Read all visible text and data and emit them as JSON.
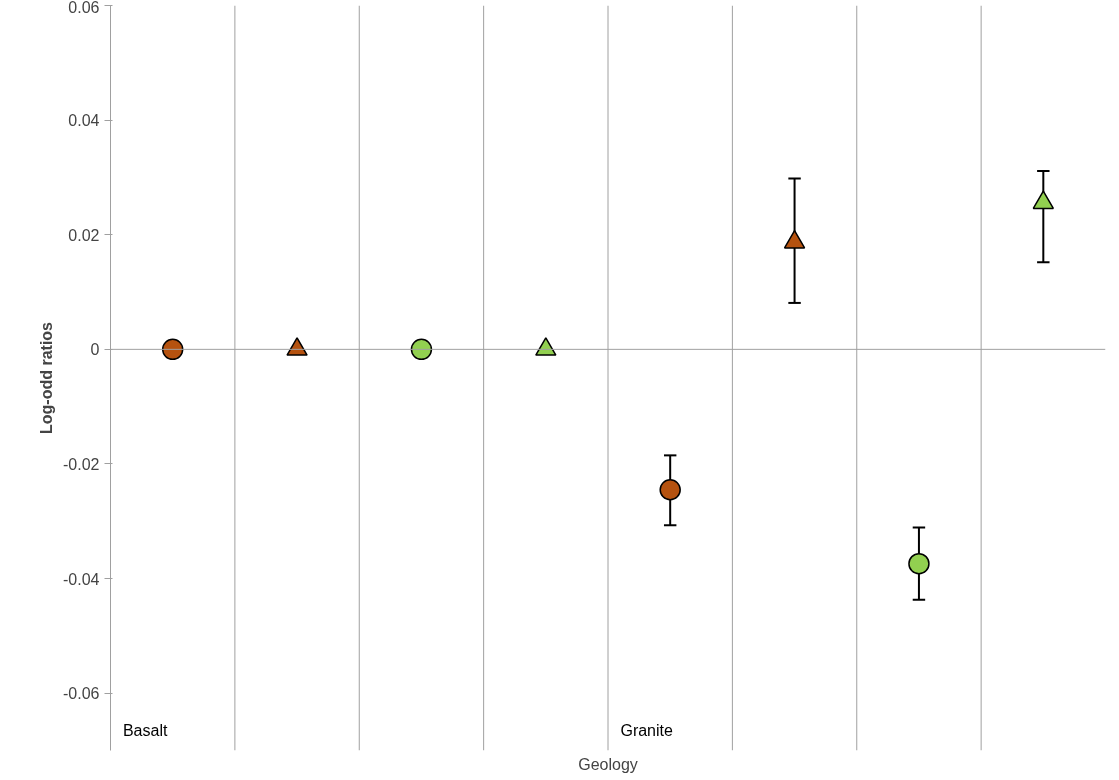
{
  "chart_data": {
    "type": "scatter",
    "ylabel": "Log-odd ratios",
    "xlabel": "Geology",
    "categories": [
      "Basalt",
      null,
      null,
      null,
      "Granite",
      null,
      null,
      null
    ],
    "ylim": [
      -0.07,
      0.06
    ],
    "yticks": [
      -0.06,
      -0.04,
      -0.02,
      0,
      0.02,
      0.04,
      0.06
    ],
    "grid": "x",
    "ref_lines": [
      {
        "axis": "y",
        "value": 0,
        "color": "#a0a0a0"
      }
    ],
    "series": [
      {
        "color": "#b5520f",
        "marker": "circle",
        "values": [
          0,
          null,
          null,
          null,
          -0.0245,
          null,
          null,
          null
        ],
        "errors": [
          null,
          null,
          null,
          null,
          [
            -0.0307,
            -0.0185
          ],
          null,
          null,
          null
        ]
      },
      {
        "color": "#b5520f",
        "marker": "triangle",
        "values": [
          null,
          0,
          null,
          null,
          null,
          0.0187,
          null,
          null
        ],
        "errors": [
          null,
          null,
          null,
          null,
          null,
          [
            0.0081,
            0.0298
          ],
          null,
          null
        ]
      },
      {
        "color": "#92d050",
        "marker": "circle",
        "values": [
          null,
          null,
          0,
          null,
          null,
          null,
          -0.0374,
          null
        ],
        "errors": [
          null,
          null,
          null,
          null,
          null,
          null,
          [
            -0.0437,
            -0.0311
          ],
          null
        ]
      },
      {
        "color": "#92d050",
        "marker": "triangle",
        "values": [
          null,
          null,
          null,
          0,
          null,
          null,
          null,
          0.0256
        ],
        "errors": [
          null,
          null,
          null,
          null,
          null,
          null,
          null,
          [
            0.0152,
            0.0311
          ]
        ]
      }
    ]
  }
}
